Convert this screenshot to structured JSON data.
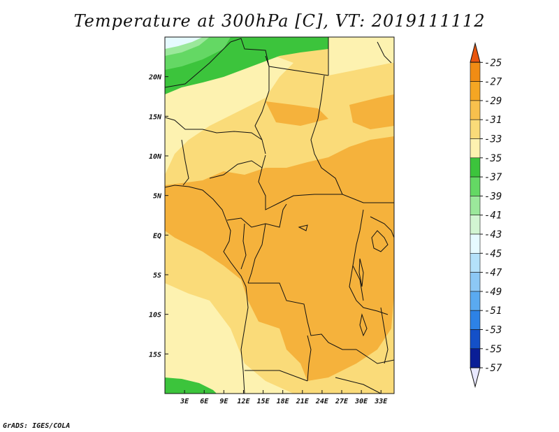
{
  "title": "Temperature at 300hPa [C], VT: 2019111112",
  "credit": "GrADS: IGES/COLA",
  "map": {
    "lon_range": [
      0,
      35
    ],
    "lat_range": [
      -20,
      25
    ],
    "lon_ticks": [
      {
        "value": 3,
        "label": "3E"
      },
      {
        "value": 6,
        "label": "6E"
      },
      {
        "value": 9,
        "label": "9E"
      },
      {
        "value": 12,
        "label": "12E"
      },
      {
        "value": 15,
        "label": "15E"
      },
      {
        "value": 18,
        "label": "18E"
      },
      {
        "value": 21,
        "label": "21E"
      },
      {
        "value": 24,
        "label": "24E"
      },
      {
        "value": 27,
        "label": "27E"
      },
      {
        "value": 30,
        "label": "30E"
      },
      {
        "value": 33,
        "label": "33E"
      }
    ],
    "lat_ticks": [
      {
        "value": 20,
        "label": "20N"
      },
      {
        "value": 15,
        "label": "15N"
      },
      {
        "value": 10,
        "label": "10N"
      },
      {
        "value": 5,
        "label": "5N"
      },
      {
        "value": 0,
        "label": "EQ"
      },
      {
        "value": -5,
        "label": "5S"
      },
      {
        "value": -10,
        "label": "10S"
      },
      {
        "value": -15,
        "label": "15S"
      }
    ]
  },
  "colorbar": {
    "levels": [
      "-25",
      "-27",
      "-29",
      "-31",
      "-33",
      "-35",
      "-37",
      "-39",
      "-41",
      "-43",
      "-45",
      "-47",
      "-49",
      "-51",
      "-53",
      "-55",
      "-57"
    ],
    "colors": [
      "#e8560f",
      "#f08c14",
      "#f5a623",
      "#f8c04d",
      "#fadb79",
      "#fdf2b0",
      "#3cc43c",
      "#64d864",
      "#9be89b",
      "#d2f5d2",
      "#e6faff",
      "#b4e1fa",
      "#8cc8f5",
      "#5aaaf0",
      "#2d82e6",
      "#1450c8",
      "#0a1e96",
      "#0a0a60"
    ],
    "top_color": "#e8560f",
    "bottom_color": "#e8e8ff"
  }
}
